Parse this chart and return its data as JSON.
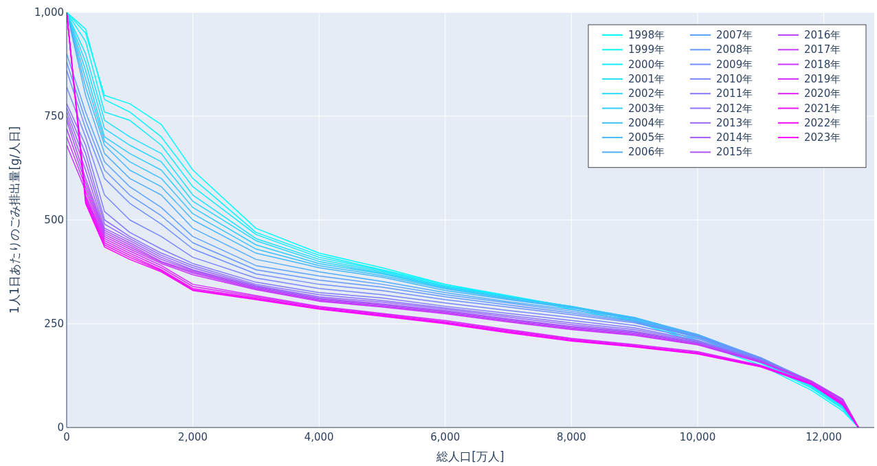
{
  "chart_data": {
    "type": "line",
    "xlabel": "総人口[万人]",
    "ylabel": "1人1日あたりのごみ排出量[g/人日]",
    "x": [
      0,
      300,
      600,
      1000,
      1500,
      2000,
      3000,
      4000,
      5000,
      6000,
      7000,
      8000,
      9000,
      10000,
      11000,
      11800,
      12300,
      12550
    ],
    "xlim": [
      0,
      12800
    ],
    "ylim": [
      0,
      1000
    ],
    "xticks": [
      0,
      {
        "value": 2000,
        "label": "2,000"
      },
      {
        "value": 4000,
        "label": "4,000"
      },
      {
        "value": 6000,
        "label": "6,000"
      },
      {
        "value": 8000,
        "label": "8,000"
      },
      {
        "value": 10000,
        "label": "10,000"
      },
      {
        "value": 12000,
        "label": "12,000"
      }
    ],
    "yticks": [
      0,
      250,
      500,
      750,
      {
        "value": 1000,
        "label": "1,000"
      }
    ],
    "grid": true,
    "legend": "top right",
    "marker": "none",
    "line_style": "solid",
    "series": [
      {
        "name": "1998年",
        "color": "#00ffff",
        "values": [
          1000,
          950,
          800,
          780,
          730,
          620,
          480,
          420,
          385,
          345,
          315,
          285,
          255,
          205,
          150,
          90,
          40,
          0
        ]
      },
      {
        "name": "1999年",
        "color": "#0af5ff",
        "values": [
          1000,
          960,
          790,
          760,
          700,
          600,
          470,
          415,
          380,
          345,
          318,
          290,
          258,
          210,
          155,
          95,
          45,
          0
        ]
      },
      {
        "name": "2000年",
        "color": "#14ebff",
        "values": [
          1000,
          930,
          760,
          740,
          680,
          580,
          465,
          410,
          378,
          342,
          316,
          290,
          260,
          215,
          158,
          98,
          48,
          0
        ]
      },
      {
        "name": "2001年",
        "color": "#1fe0ff",
        "values": [
          1000,
          900,
          740,
          700,
          660,
          560,
          455,
          405,
          375,
          340,
          315,
          292,
          262,
          218,
          160,
          100,
          50,
          0
        ]
      },
      {
        "name": "2002年",
        "color": "#29d6ff",
        "values": [
          1000,
          880,
          720,
          680,
          640,
          545,
          450,
          400,
          372,
          338,
          314,
          292,
          264,
          220,
          162,
          102,
          52,
          0
        ]
      },
      {
        "name": "2003年",
        "color": "#33ccff",
        "values": [
          1000,
          860,
          700,
          660,
          620,
          530,
          440,
          395,
          370,
          336,
          312,
          292,
          265,
          222,
          164,
          104,
          54,
          0
        ]
      },
      {
        "name": "2004年",
        "color": "#3dc2ff",
        "values": [
          1000,
          840,
          690,
          640,
          600,
          515,
          430,
          390,
          366,
          334,
          310,
          290,
          265,
          224,
          166,
          106,
          56,
          0
        ]
      },
      {
        "name": "2005年",
        "color": "#47b8ff",
        "values": [
          1000,
          820,
          680,
          620,
          580,
          500,
          420,
          385,
          362,
          330,
          308,
          288,
          264,
          224,
          167,
          108,
          58,
          0
        ]
      },
      {
        "name": "2006年",
        "color": "#52adff",
        "values": [
          1000,
          800,
          660,
          600,
          560,
          480,
          405,
          375,
          352,
          325,
          303,
          284,
          262,
          224,
          168,
          110,
          60,
          0
        ]
      },
      {
        "name": "2007年",
        "color": "#5ca3ff",
        "values": [
          900,
          760,
          640,
          580,
          530,
          460,
          390,
          365,
          345,
          320,
          300,
          280,
          258,
          222,
          168,
          110,
          62,
          0
        ]
      },
      {
        "name": "2008年",
        "color": "#6699ff",
        "values": [
          880,
          740,
          620,
          560,
          510,
          445,
          380,
          355,
          338,
          315,
          295,
          276,
          255,
          220,
          168,
          112,
          64,
          0
        ]
      },
      {
        "name": "2009年",
        "color": "#708fff",
        "values": [
          860,
          720,
          600,
          540,
          490,
          430,
          370,
          345,
          330,
          308,
          290,
          272,
          252,
          218,
          167,
          112,
          66,
          0
        ]
      },
      {
        "name": "2010年",
        "color": "#7a85ff",
        "values": [
          820,
          700,
          560,
          500,
          460,
          410,
          360,
          335,
          320,
          300,
          282,
          265,
          246,
          214,
          165,
          112,
          68,
          0
        ]
      },
      {
        "name": "2011年",
        "color": "#857aff",
        "values": [
          780,
          680,
          520,
          470,
          430,
          395,
          350,
          325,
          312,
          292,
          275,
          258,
          240,
          210,
          163,
          112,
          68,
          0
        ]
      },
      {
        "name": "2012年",
        "color": "#8f70ff",
        "values": [
          770,
          660,
          500,
          460,
          420,
          390,
          345,
          320,
          306,
          288,
          270,
          252,
          236,
          208,
          162,
          112,
          68,
          0
        ]
      },
      {
        "name": "2013年",
        "color": "#9966ff",
        "values": [
          760,
          640,
          490,
          455,
          415,
          385,
          342,
          315,
          302,
          285,
          266,
          248,
          232,
          206,
          161,
          112,
          68,
          0
        ]
      },
      {
        "name": "2014年",
        "color": "#a35cff",
        "values": [
          750,
          620,
          480,
          450,
          410,
          380,
          340,
          312,
          298,
          282,
          262,
          244,
          230,
          204,
          160,
          112,
          68,
          0
        ]
      },
      {
        "name": "2015年",
        "color": "#ad52ff",
        "values": [
          740,
          600,
          475,
          445,
          405,
          378,
          338,
          310,
          296,
          280,
          260,
          242,
          228,
          203,
          160,
          112,
          68,
          0
        ]
      },
      {
        "name": "2016年",
        "color": "#b847ff",
        "values": [
          720,
          590,
          470,
          440,
          400,
          375,
          336,
          308,
          294,
          278,
          258,
          240,
          226,
          202,
          159,
          112,
          68,
          0
        ]
      },
      {
        "name": "2017年",
        "color": "#c23dff",
        "values": [
          700,
          580,
          465,
          435,
          398,
          372,
          334,
          306,
          292,
          276,
          256,
          238,
          224,
          200,
          158,
          111,
          67,
          0
        ]
      },
      {
        "name": "2018年",
        "color": "#cc33ff",
        "values": [
          680,
          570,
          460,
          430,
          395,
          368,
          332,
          304,
          290,
          274,
          254,
          236,
          222,
          199,
          157,
          110,
          66,
          0
        ]
      },
      {
        "name": "2019年",
        "color": "#d629ff",
        "values": [
          1000,
          560,
          455,
          425,
          390,
          345,
          318,
          292,
          275,
          258,
          236,
          215,
          200,
          183,
          150,
          108,
          62,
          0
        ]
      },
      {
        "name": "2020年",
        "color": "#e01fff",
        "values": [
          1000,
          555,
          450,
          420,
          385,
          340,
          315,
          290,
          273,
          255,
          234,
          213,
          198,
          181,
          149,
          107,
          60,
          0
        ]
      },
      {
        "name": "2021年",
        "color": "#eb14ff",
        "values": [
          1000,
          550,
          445,
          415,
          380,
          335,
          312,
          288,
          271,
          253,
          232,
          211,
          196,
          179,
          148,
          106,
          58,
          0
        ]
      },
      {
        "name": "2022年",
        "color": "#f50aff",
        "values": [
          1000,
          545,
          440,
          410,
          378,
          332,
          310,
          286,
          270,
          252,
          230,
          210,
          195,
          178,
          147,
          105,
          56,
          0
        ]
      },
      {
        "name": "2023年",
        "color": "#ff00ff",
        "values": [
          1000,
          540,
          435,
          405,
          375,
          330,
          308,
          285,
          268,
          250,
          228,
          208,
          194,
          177,
          146,
          104,
          54,
          0
        ]
      }
    ]
  }
}
